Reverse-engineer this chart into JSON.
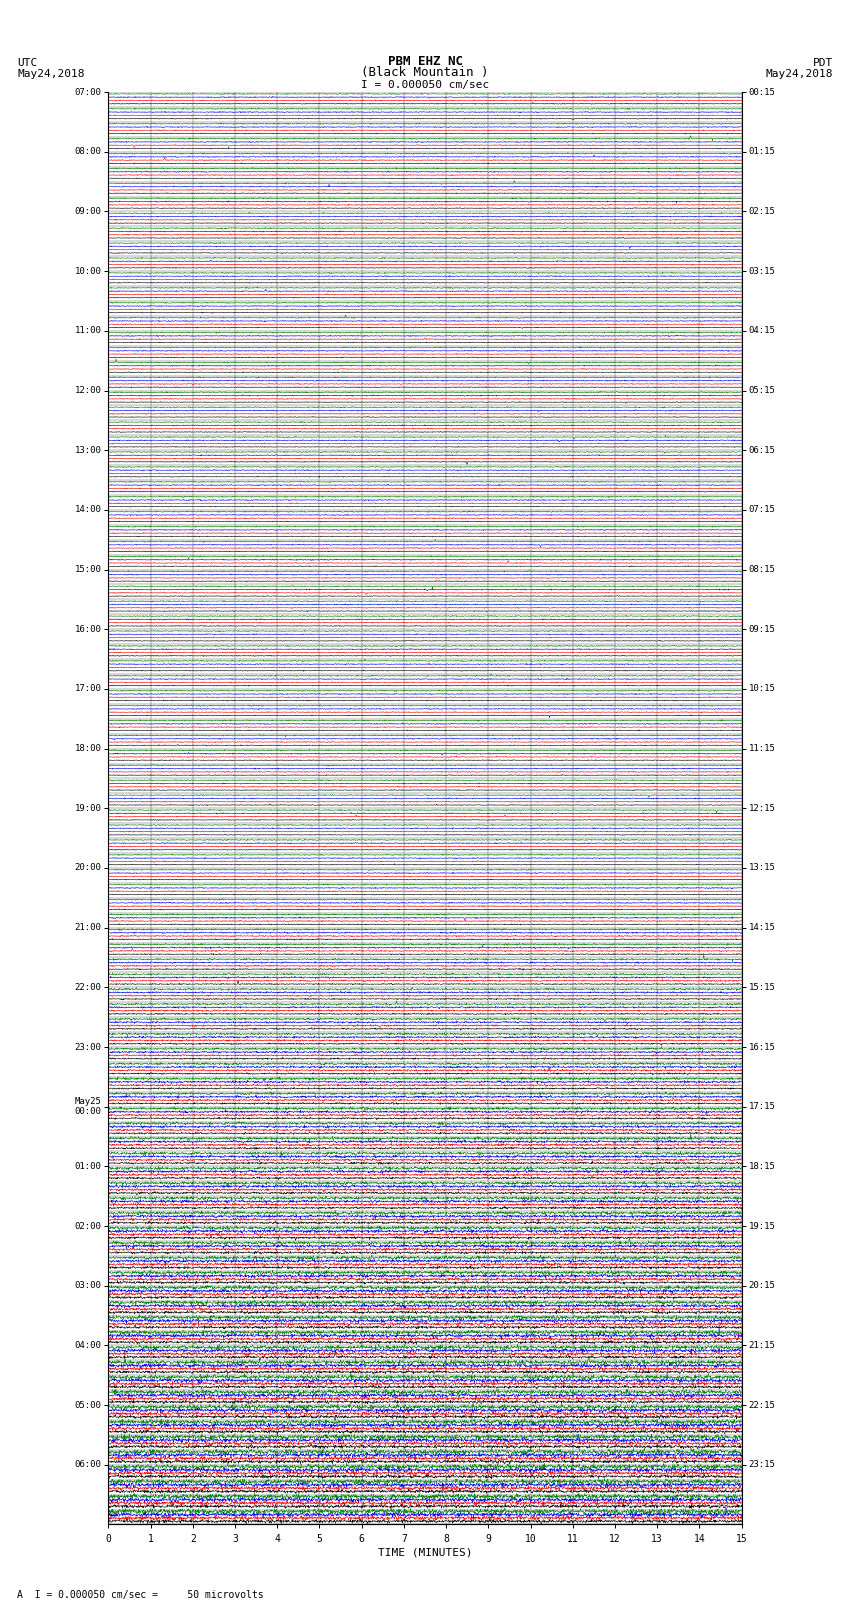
{
  "title_line1": "PBM EHZ NC",
  "title_line2": "(Black Mountain )",
  "scale_label": "I = 0.000050 cm/sec",
  "left_label_line1": "UTC",
  "left_label_line2": "May24,2018",
  "right_label_line1": "PDT",
  "right_label_line2": "May24,2018",
  "bottom_label": "TIME (MINUTES)",
  "bottom_note": "A  I = 0.000050 cm/sec =     50 microvolts",
  "utc_hour_labels": [
    "07:00",
    "08:00",
    "09:00",
    "10:00",
    "11:00",
    "12:00",
    "13:00",
    "14:00",
    "15:00",
    "16:00",
    "17:00",
    "18:00",
    "19:00",
    "20:00",
    "21:00",
    "22:00",
    "23:00",
    "May25\n00:00",
    "01:00",
    "02:00",
    "03:00",
    "04:00",
    "05:00",
    "06:00"
  ],
  "pdt_hour_labels": [
    "00:15",
    "01:15",
    "02:15",
    "03:15",
    "04:15",
    "05:15",
    "06:15",
    "07:15",
    "08:15",
    "09:15",
    "10:15",
    "11:15",
    "12:15",
    "13:15",
    "14:15",
    "15:15",
    "16:15",
    "17:15",
    "18:15",
    "19:15",
    "20:15",
    "21:15",
    "22:15",
    "23:15"
  ],
  "bg_color": "#ffffff",
  "line_colors": [
    "#000000",
    "#ff0000",
    "#0000ff",
    "#008000"
  ],
  "n_rows": 96,
  "n_traces_per_row": 4,
  "xlim": [
    0,
    15
  ],
  "xlabel_ticks": [
    0,
    1,
    2,
    3,
    4,
    5,
    6,
    7,
    8,
    9,
    10,
    11,
    12,
    13,
    14,
    15
  ],
  "transition_row": 52,
  "noise_scale_quiet": 0.012,
  "noise_scale_loud": 0.055
}
